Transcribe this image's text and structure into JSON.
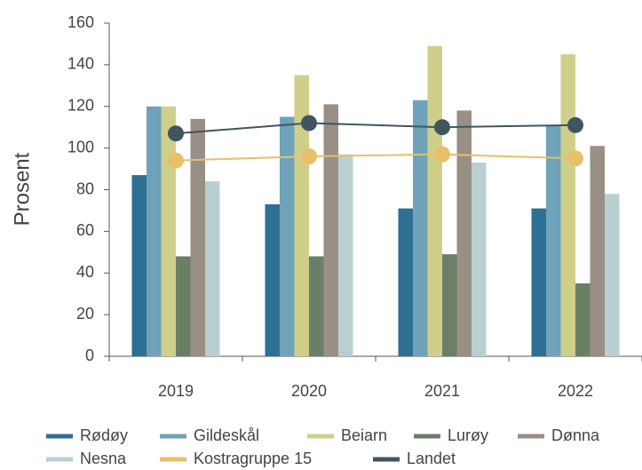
{
  "chart_data": {
    "type": "bar",
    "y_label": "Prosent",
    "categories": [
      "2019",
      "2020",
      "2021",
      "2022"
    ],
    "ylim": [
      0,
      160
    ],
    "yticks": [
      0,
      20,
      40,
      60,
      80,
      100,
      120,
      140,
      160
    ],
    "series": [
      {
        "name": "Rødøy",
        "type": "bar",
        "color": "#2e6f94",
        "values": [
          87,
          73,
          71,
          71
        ]
      },
      {
        "name": "Gildeskål",
        "type": "bar",
        "color": "#6fa3ba",
        "values": [
          120,
          115,
          123,
          111
        ]
      },
      {
        "name": "Beiarn",
        "type": "bar",
        "color": "#cfcf8a",
        "values": [
          120,
          135,
          149,
          145
        ]
      },
      {
        "name": "Lurøy",
        "type": "bar",
        "color": "#6b7f67",
        "values": [
          48,
          48,
          49,
          35
        ]
      },
      {
        "name": "Dønna",
        "type": "bar",
        "color": "#9a8f85",
        "values": [
          114,
          121,
          118,
          101
        ]
      },
      {
        "name": "Nesna",
        "type": "bar",
        "color": "#b9d0d2",
        "values": [
          84,
          97,
          93,
          78
        ]
      },
      {
        "name": "Kostragruppe 15",
        "type": "line",
        "color": "#e8c06a",
        "values": [
          94,
          96,
          97,
          95
        ]
      },
      {
        "name": "Landet",
        "type": "line",
        "color": "#3f5660",
        "values": [
          107,
          112,
          110,
          111
        ]
      }
    ]
  }
}
